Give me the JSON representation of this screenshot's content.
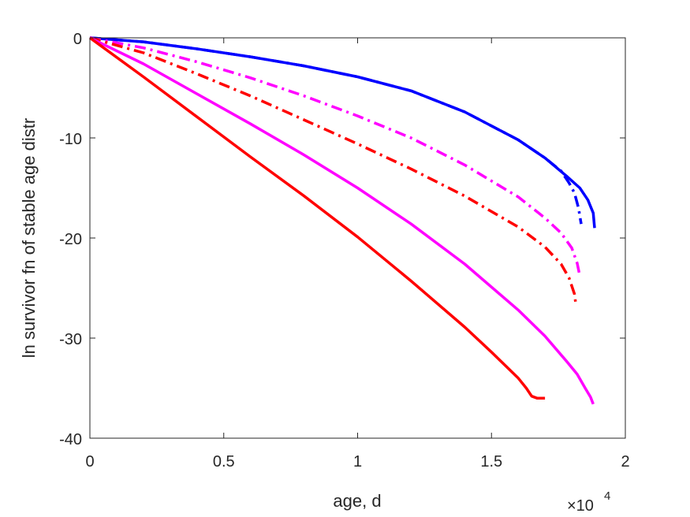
{
  "chart_data": {
    "type": "line",
    "xlabel": "age, d",
    "ylabel": "ln survivor fn of stable age distr",
    "x_exponent_label": {
      "base": "×10",
      "exp": "4"
    },
    "xlim": [
      0,
      20000
    ],
    "ylim": [
      -40,
      0
    ],
    "xticks": [
      0,
      5000,
      10000,
      15000,
      20000
    ],
    "xtick_labels": [
      "0",
      "0.5",
      "1",
      "1.5",
      "2"
    ],
    "yticks": [
      0,
      -10,
      -20,
      -30,
      -40
    ],
    "ytick_labels": [
      "0",
      "-10",
      "-20",
      "-30",
      "-40"
    ],
    "grid": false,
    "series": [
      {
        "color": "#0000ff",
        "style": "solid",
        "x": [
          0,
          2000,
          4000,
          6000,
          8000,
          10000,
          12000,
          14000,
          16000,
          17000,
          17800,
          18300,
          18600,
          18800,
          18850
        ],
        "y": [
          0,
          -0.4,
          -1.1,
          -1.9,
          -2.8,
          -3.9,
          -5.3,
          -7.4,
          -10.2,
          -12.0,
          -13.8,
          -15.0,
          -16.2,
          -17.5,
          -19.0
        ]
      },
      {
        "color": "#0000ff",
        "style": "dashdot",
        "x": [
          0,
          2000,
          4000,
          6000,
          8000,
          10000,
          12000,
          14000,
          16000,
          17000,
          17600,
          17900,
          18100,
          18250,
          18350
        ],
        "y": [
          0,
          -0.4,
          -1.1,
          -1.9,
          -2.8,
          -3.9,
          -5.3,
          -7.4,
          -10.2,
          -12.0,
          -13.3,
          -14.5,
          -15.5,
          -17.0,
          -18.6
        ]
      },
      {
        "color": "#ff00ff",
        "style": "dashdot",
        "x": [
          0,
          2000,
          4000,
          6000,
          8000,
          10000,
          12000,
          14000,
          16000,
          17000,
          17600,
          18000,
          18200,
          18300
        ],
        "y": [
          0,
          -1.0,
          -2.4,
          -4.0,
          -5.8,
          -7.8,
          -10.0,
          -12.7,
          -15.9,
          -18.0,
          -19.5,
          -21.0,
          -22.5,
          -23.8
        ]
      },
      {
        "color": "#ff0000",
        "style": "dashdot",
        "x": [
          0,
          2000,
          4000,
          6000,
          8000,
          10000,
          12000,
          14000,
          16000,
          17000,
          17600,
          17900,
          18100,
          18150
        ],
        "y": [
          0,
          -1.5,
          -3.6,
          -5.8,
          -8.2,
          -10.6,
          -13.1,
          -15.8,
          -18.9,
          -20.9,
          -22.6,
          -24.0,
          -25.6,
          -26.6
        ]
      },
      {
        "color": "#ff00ff",
        "style": "solid",
        "x": [
          0,
          2000,
          4000,
          6000,
          8000,
          10000,
          12000,
          14000,
          16000,
          17000,
          17800,
          18200,
          18500,
          18700,
          18800
        ],
        "y": [
          0,
          -2.6,
          -5.6,
          -8.6,
          -11.7,
          -15.0,
          -18.6,
          -22.6,
          -27.2,
          -29.8,
          -32.3,
          -33.6,
          -35.0,
          -35.9,
          -36.6
        ]
      },
      {
        "color": "#ff0000",
        "style": "solid",
        "x": [
          0,
          2000,
          4000,
          6000,
          8000,
          10000,
          12000,
          14000,
          15000,
          16000,
          16300,
          16500,
          16700,
          17000
        ],
        "y": [
          0,
          -3.9,
          -7.9,
          -11.9,
          -15.8,
          -19.9,
          -24.3,
          -28.9,
          -31.4,
          -34.0,
          -35.0,
          -35.8,
          -36.0,
          -36.0
        ]
      }
    ]
  }
}
